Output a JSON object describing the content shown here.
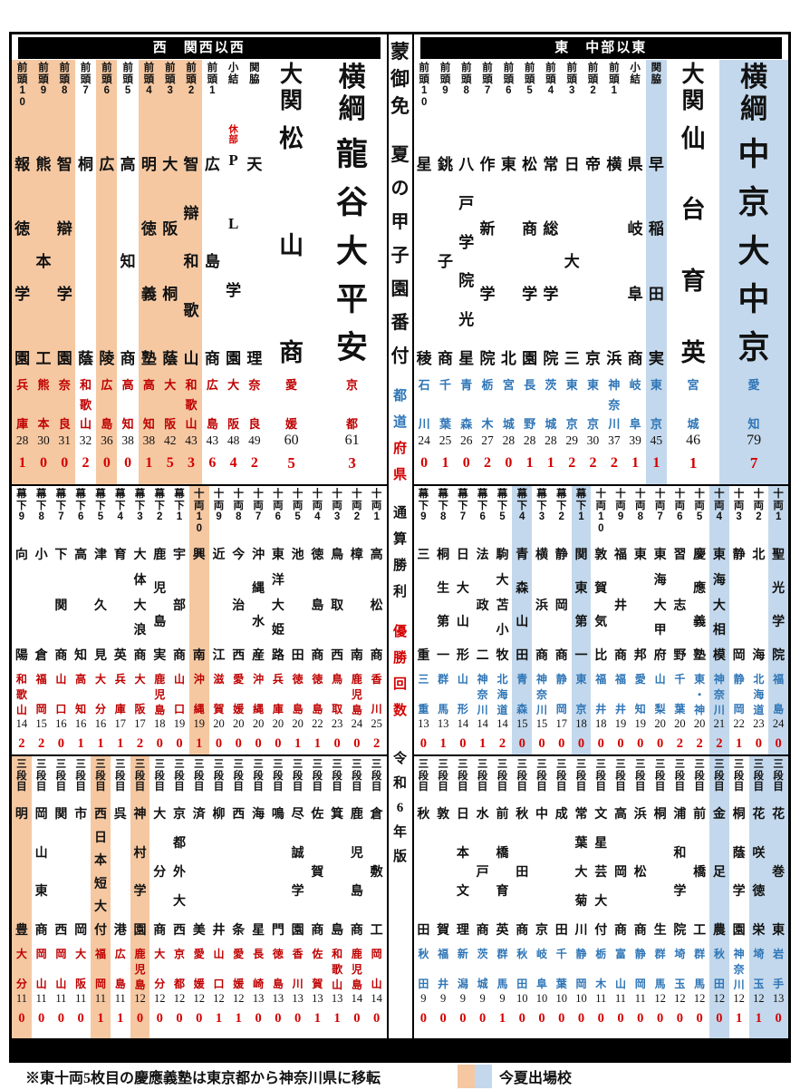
{
  "headers": {
    "west": "西　関西以西",
    "east": "東　中部以東"
  },
  "center": {
    "kanban": "蒙御免",
    "title": "夏の甲子園番付",
    "label_pref_blue": "都道",
    "label_pref_red": "府県",
    "label_wins": "通算勝利",
    "label_titles": "優勝回数",
    "edition": "令和6年版"
  },
  "footer": {
    "note": "※東十両5枚目の慶應義塾は東京都から神奈川県に移転",
    "legend_label": "今夏出場校"
  },
  "colors": {
    "west_highlight": "#f5c8a2",
    "east_highlight": "#c3d8ec",
    "west_pref_text": "#bf0000",
    "east_pref_text": "#2e75b6",
    "championship_red": "#d40000"
  },
  "west": {
    "bands": [
      {
        "name": "makuuchi",
        "columns": [
          {
            "rank": "前頭10",
            "school": "報徳学園",
            "pref": "兵庫",
            "wins": "28",
            "titles": "1",
            "highlight": true
          },
          {
            "rank": "前頭9",
            "school": "熊本工",
            "pref": "熊本",
            "wins": "30",
            "titles": "0",
            "highlight": true
          },
          {
            "rank": "前頭8",
            "school": "智辯学園",
            "pref": "奈良",
            "wins": "31",
            "titles": "0",
            "highlight": true
          },
          {
            "rank": "前頭7",
            "school": "桐蔭",
            "pref": "和歌山",
            "wins": "32",
            "titles": "2"
          },
          {
            "rank": "前頭6",
            "school": "広陵",
            "pref": "広島",
            "wins": "36",
            "titles": "0",
            "highlight": true
          },
          {
            "rank": "前頭5",
            "school": "高知商",
            "pref": "高知",
            "wins": "38",
            "titles": "0"
          },
          {
            "rank": "前頭4",
            "school": "明徳義塾",
            "pref": "高知",
            "wins": "38",
            "titles": "1",
            "highlight": true
          },
          {
            "rank": "前頭3",
            "school": "大阪桐蔭",
            "pref": "大阪",
            "wins": "42",
            "titles": "5",
            "highlight": true
          },
          {
            "rank": "前頭2",
            "school": "智辯和歌山",
            "pref": "和歌山",
            "wins": "43",
            "titles": "3",
            "highlight": true
          },
          {
            "rank": "前頭1",
            "school": "広島商",
            "pref": "広島",
            "wins": "43",
            "titles": "6"
          },
          {
            "rank": "小結",
            "school": "PL学園",
            "pref": "大阪",
            "wins": "48",
            "titles": "4",
            "note": "休部"
          },
          {
            "rank": "関脇",
            "school": "天理",
            "pref": "奈良",
            "wins": "49",
            "titles": "2"
          },
          {
            "rank": "大関",
            "school": "松山商",
            "pref": "愛媛",
            "wins": "60",
            "titles": "5",
            "size": "ozeki"
          },
          {
            "rank": "横綱",
            "school": "龍谷大平安",
            "pref": "京都",
            "wins": "61",
            "titles": "3",
            "size": "yokozuna"
          }
        ]
      },
      {
        "name": "juryo-makushita",
        "columns": [
          {
            "rank": "幕下9",
            "school": "向陽",
            "pref": "和歌山",
            "wins": "14",
            "titles": "2"
          },
          {
            "rank": "幕下8",
            "school": "小倉",
            "pref": "福岡",
            "wins": "15",
            "titles": "2"
          },
          {
            "rank": "幕下7",
            "school": "下関商",
            "pref": "山口",
            "wins": "16",
            "titles": "0"
          },
          {
            "rank": "幕下6",
            "school": "高知",
            "pref": "高知",
            "wins": "16",
            "titles": "1"
          },
          {
            "rank": "幕下5",
            "school": "津久見",
            "pref": "大分",
            "wins": "16",
            "titles": "1"
          },
          {
            "rank": "幕下4",
            "school": "育英",
            "pref": "兵庫",
            "wins": "17",
            "titles": "1"
          },
          {
            "rank": "幕下3",
            "school": "大体大浪商",
            "pref": "大阪",
            "wins": "17",
            "titles": "2"
          },
          {
            "rank": "幕下2",
            "school": "鹿児島実",
            "pref": "鹿児島",
            "wins": "18",
            "titles": "0"
          },
          {
            "rank": "幕下1",
            "school": "宇部商",
            "pref": "山口",
            "wins": "19",
            "titles": "0"
          },
          {
            "rank": "十両10",
            "school": "興南",
            "pref": "沖縄",
            "wins": "19",
            "titles": "1",
            "highlight": true
          },
          {
            "rank": "十両9",
            "school": "近江",
            "pref": "滋賀",
            "wins": "20",
            "titles": "0"
          },
          {
            "rank": "十両8",
            "school": "今治西",
            "pref": "愛媛",
            "wins": "20",
            "titles": "0"
          },
          {
            "rank": "十両7",
            "school": "沖縄水産",
            "pref": "沖縄",
            "wins": "20",
            "titles": "0"
          },
          {
            "rank": "十両6",
            "school": "東洋大姫路",
            "pref": "兵庫",
            "wins": "20",
            "titles": "0"
          },
          {
            "rank": "十両5",
            "school": "池田",
            "pref": "徳島",
            "wins": "20",
            "titles": "1"
          },
          {
            "rank": "十両4",
            "school": "徳島商",
            "pref": "徳島",
            "wins": "22",
            "titles": "1"
          },
          {
            "rank": "十両3",
            "school": "鳥取西",
            "pref": "鳥取",
            "wins": "23",
            "titles": "0"
          },
          {
            "rank": "十両2",
            "school": "樟南",
            "pref": "鹿児島",
            "wins": "24",
            "titles": "0"
          },
          {
            "rank": "十両1",
            "school": "高松商",
            "pref": "香川",
            "wins": "25",
            "titles": "2"
          }
        ]
      },
      {
        "name": "sandanme",
        "columns": [
          {
            "rank": "三段目",
            "school": "明豊",
            "pref": "大分",
            "wins": "11",
            "titles": "0",
            "highlight": true
          },
          {
            "rank": "三段目",
            "school": "岡山東商",
            "pref": "岡山",
            "wins": "11",
            "titles": "0"
          },
          {
            "rank": "三段目",
            "school": "関西",
            "pref": "岡山",
            "wins": "11",
            "titles": "0"
          },
          {
            "rank": "三段目",
            "school": "市岡",
            "pref": "大阪",
            "wins": "11",
            "titles": "0"
          },
          {
            "rank": "三段目",
            "school": "西日本短大付",
            "pref": "福岡",
            "wins": "11",
            "titles": "1",
            "highlight": true
          },
          {
            "rank": "三段目",
            "school": "呉港",
            "pref": "広島",
            "wins": "11",
            "titles": "1"
          },
          {
            "rank": "三段目",
            "school": "神村学園",
            "pref": "鹿児島",
            "wins": "12",
            "titles": "0",
            "highlight": true
          },
          {
            "rank": "三段目",
            "school": "大分商",
            "pref": "大分",
            "wins": "12",
            "titles": "0"
          },
          {
            "rank": "三段目",
            "school": "京都外大西",
            "pref": "京都",
            "wins": "12",
            "titles": "0"
          },
          {
            "rank": "三段目",
            "school": "済美",
            "pref": "愛媛",
            "wins": "12",
            "titles": "0"
          },
          {
            "rank": "三段目",
            "school": "柳井",
            "pref": "山口",
            "wins": "12",
            "titles": "1"
          },
          {
            "rank": "三段目",
            "school": "西条",
            "pref": "愛媛",
            "wins": "12",
            "titles": "1"
          },
          {
            "rank": "三段目",
            "school": "海星",
            "pref": "長崎",
            "wins": "13",
            "titles": "0"
          },
          {
            "rank": "三段目",
            "school": "鳴門",
            "pref": "徳島",
            "wins": "13",
            "titles": "0"
          },
          {
            "rank": "三段目",
            "school": "尽誠学園",
            "pref": "香川",
            "wins": "13",
            "titles": "0"
          },
          {
            "rank": "三段目",
            "school": "佐賀商",
            "pref": "佐賀",
            "wins": "13",
            "titles": "1"
          },
          {
            "rank": "三段目",
            "school": "箕島",
            "pref": "和歌山",
            "wins": "13",
            "titles": "1"
          },
          {
            "rank": "三段目",
            "school": "鹿児島商",
            "pref": "鹿児島",
            "wins": "14",
            "titles": "0"
          },
          {
            "rank": "三段目",
            "school": "倉敷工",
            "pref": "岡山",
            "wins": "14",
            "titles": "0"
          }
        ]
      }
    ]
  },
  "east": {
    "bands": [
      {
        "name": "makuuchi",
        "columns": [
          {
            "rank": "前頭10",
            "school": "星稜",
            "pref": "石川",
            "wins": "24",
            "titles": "0"
          },
          {
            "rank": "前頭9",
            "school": "銚子商",
            "pref": "千葉",
            "wins": "25",
            "titles": "1"
          },
          {
            "rank": "前頭8",
            "school": "八戸学院光星",
            "pref": "青森",
            "wins": "26",
            "titles": "0"
          },
          {
            "rank": "前頭7",
            "school": "作新学院",
            "pref": "栃木",
            "wins": "27",
            "titles": "2"
          },
          {
            "rank": "前頭6",
            "school": "東北",
            "pref": "宮城",
            "wins": "28",
            "titles": "0"
          },
          {
            "rank": "前頭5",
            "school": "松商学園",
            "pref": "長野",
            "wins": "28",
            "titles": "1"
          },
          {
            "rank": "前頭4",
            "school": "常総学院",
            "pref": "茨城",
            "wins": "28",
            "titles": "1"
          },
          {
            "rank": "前頭3",
            "school": "日大三",
            "pref": "東京",
            "wins": "29",
            "titles": "2"
          },
          {
            "rank": "前頭2",
            "school": "帝京",
            "pref": "東京",
            "wins": "30",
            "titles": "2"
          },
          {
            "rank": "前頭1",
            "school": "横浜",
            "pref": "神奈川",
            "wins": "37",
            "titles": "2"
          },
          {
            "rank": "小結",
            "school": "県岐阜商",
            "pref": "岐阜",
            "wins": "39",
            "titles": "1"
          },
          {
            "rank": "関脇",
            "school": "早稲田実",
            "pref": "東京",
            "wins": "45",
            "titles": "1",
            "highlight": true
          },
          {
            "rank": "大関",
            "school": "仙台育英",
            "pref": "宮城",
            "wins": "46",
            "titles": "1",
            "size": "ozeki"
          },
          {
            "rank": "横綱",
            "school": "中京大中京",
            "pref": "愛知",
            "wins": "79",
            "titles": "7",
            "size": "yokozuna",
            "highlight": true
          }
        ]
      },
      {
        "name": "juryo-makushita",
        "columns": [
          {
            "rank": "幕下9",
            "school": "三重",
            "pref": "三重",
            "wins": "13",
            "titles": "0"
          },
          {
            "rank": "幕下8",
            "school": "桐生第一",
            "pref": "群馬",
            "wins": "13",
            "titles": "1"
          },
          {
            "rank": "幕下7",
            "school": "日大山形",
            "pref": "山形",
            "wins": "14",
            "titles": "0"
          },
          {
            "rank": "幕下6",
            "school": "法政二",
            "pref": "神奈川",
            "wins": "14",
            "titles": "1"
          },
          {
            "rank": "幕下5",
            "school": "駒大苫小牧",
            "pref": "北海道",
            "wins": "14",
            "titles": "2"
          },
          {
            "rank": "幕下4",
            "school": "青森山田",
            "pref": "青森",
            "wins": "15",
            "titles": "0",
            "highlight": true
          },
          {
            "rank": "幕下3",
            "school": "横浜商",
            "pref": "神奈川",
            "wins": "15",
            "titles": "0"
          },
          {
            "rank": "幕下2",
            "school": "静岡商",
            "pref": "静岡",
            "wins": "17",
            "titles": "0"
          },
          {
            "rank": "幕下1",
            "school": "関東第一",
            "pref": "東京",
            "wins": "18",
            "titles": "0",
            "highlight": true
          },
          {
            "rank": "十両10",
            "school": "敦賀気比",
            "pref": "福井",
            "wins": "18",
            "titles": "0"
          },
          {
            "rank": "十両9",
            "school": "福井商",
            "pref": "福井",
            "wins": "19",
            "titles": "0"
          },
          {
            "rank": "十両8",
            "school": "東邦",
            "pref": "愛知",
            "wins": "19",
            "titles": "0"
          },
          {
            "rank": "十両7",
            "school": "東海大甲府",
            "pref": "山梨",
            "wins": "20",
            "titles": "0"
          },
          {
            "rank": "十両6",
            "school": "習志野",
            "pref": "千葉",
            "wins": "20",
            "titles": "2"
          },
          {
            "rank": "十両5",
            "school": "慶應義塾",
            "pref": "東・神",
            "wins": "20",
            "titles": "2"
          },
          {
            "rank": "十両4",
            "school": "東海大相模",
            "pref": "神奈川",
            "wins": "21",
            "titles": "2",
            "highlight": true
          },
          {
            "rank": "十両3",
            "school": "静岡",
            "pref": "静岡",
            "wins": "22",
            "titles": "1"
          },
          {
            "rank": "十両2",
            "school": "北海",
            "pref": "北海道",
            "wins": "23",
            "titles": "0"
          },
          {
            "rank": "十両1",
            "school": "聖光学院",
            "pref": "福島",
            "wins": "24",
            "titles": "0",
            "highlight": true
          }
        ]
      },
      {
        "name": "sandanme",
        "columns": [
          {
            "rank": "三段目",
            "school": "秋田",
            "pref": "秋田",
            "wins": "9",
            "titles": "0"
          },
          {
            "rank": "三段目",
            "school": "敦賀",
            "pref": "福井",
            "wins": "9",
            "titles": "0"
          },
          {
            "rank": "三段目",
            "school": "日本文理",
            "pref": "新潟",
            "wins": "9",
            "titles": "0"
          },
          {
            "rank": "三段目",
            "school": "水戸商",
            "pref": "茨城",
            "wins": "9",
            "titles": "0"
          },
          {
            "rank": "三段目",
            "school": "前橋育英",
            "pref": "群馬",
            "wins": "9",
            "titles": "1"
          },
          {
            "rank": "三段目",
            "school": "秋田商",
            "pref": "秋田",
            "wins": "10",
            "titles": "0"
          },
          {
            "rank": "三段目",
            "school": "中京",
            "pref": "岐阜",
            "wins": "10",
            "titles": "0"
          },
          {
            "rank": "三段目",
            "school": "成田",
            "pref": "千葉",
            "wins": "10",
            "titles": "0"
          },
          {
            "rank": "三段目",
            "school": "常葉大菊川",
            "pref": "静岡",
            "wins": "10",
            "titles": "0"
          },
          {
            "rank": "三段目",
            "school": "文星芸大付",
            "pref": "栃木",
            "wins": "11",
            "titles": "0"
          },
          {
            "rank": "三段目",
            "school": "高岡商",
            "pref": "富山",
            "wins": "11",
            "titles": "0"
          },
          {
            "rank": "三段目",
            "school": "浜松商",
            "pref": "静岡",
            "wins": "11",
            "titles": "0"
          },
          {
            "rank": "三段目",
            "school": "桐生",
            "pref": "群馬",
            "wins": "12",
            "titles": "0"
          },
          {
            "rank": "三段目",
            "school": "浦和学院",
            "pref": "埼玉",
            "wins": "12",
            "titles": "0"
          },
          {
            "rank": "三段目",
            "school": "前橋工",
            "pref": "群馬",
            "wins": "12",
            "titles": "0"
          },
          {
            "rank": "三段目",
            "school": "金足農",
            "pref": "秋田",
            "wins": "12",
            "titles": "0",
            "highlight": true
          },
          {
            "rank": "三段目",
            "school": "桐蔭学園",
            "pref": "神奈川",
            "wins": "12",
            "titles": "1"
          },
          {
            "rank": "三段目",
            "school": "花咲徳栄",
            "pref": "埼玉",
            "wins": "12",
            "titles": "1",
            "highlight": true
          },
          {
            "rank": "三段目",
            "school": "花巻東",
            "pref": "岩手",
            "wins": "13",
            "titles": "0",
            "highlight": true
          }
        ]
      }
    ]
  }
}
